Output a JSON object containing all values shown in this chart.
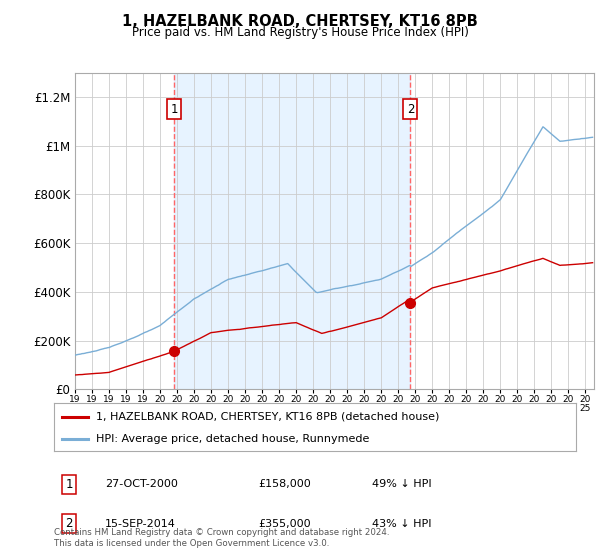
{
  "title": "1, HAZELBANK ROAD, CHERTSEY, KT16 8PB",
  "subtitle": "Price paid vs. HM Land Registry's House Price Index (HPI)",
  "legend_label_red": "1, HAZELBANK ROAD, CHERTSEY, KT16 8PB (detached house)",
  "legend_label_blue": "HPI: Average price, detached house, Runnymede",
  "transaction1_date": "27-OCT-2000",
  "transaction1_price": "£158,000",
  "transaction1_hpi": "49% ↓ HPI",
  "transaction1_year": 2000.83,
  "transaction1_value": 158000,
  "transaction2_date": "15-SEP-2014",
  "transaction2_price": "£355,000",
  "transaction2_hpi": "43% ↓ HPI",
  "transaction2_year": 2014.71,
  "transaction2_value": 355000,
  "footer": "Contains HM Land Registry data © Crown copyright and database right 2024.\nThis data is licensed under the Open Government Licence v3.0.",
  "red_color": "#cc0000",
  "blue_color": "#7aaed6",
  "shade_color": "#ddeeff",
  "dashed_color": "#ff6666",
  "ylim_max": 1300000,
  "xlim_min": 1995,
  "xlim_max": 2025.5,
  "background_color": "#ffffff"
}
